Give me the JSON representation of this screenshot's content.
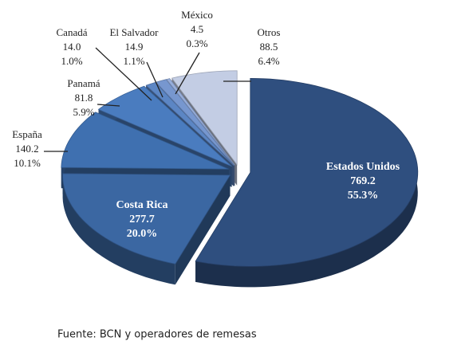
{
  "chart_data": {
    "type": "pie3d",
    "categories": [
      "Estados Unidos",
      "Costa Rica",
      "España",
      "Panamá",
      "Canadá",
      "El Salvador",
      "México",
      "Otros"
    ],
    "values": [
      769.2,
      277.7,
      140.2,
      81.8,
      14.0,
      14.9,
      4.5,
      88.5
    ],
    "value_labels": [
      "769.2",
      "277.7",
      "140.2",
      "81.8",
      "14.0",
      "14.9",
      "4.5",
      "88.5"
    ],
    "percent_labels": [
      "55.3%",
      "20.0%",
      "10.1%",
      "5.9%",
      "1.0%",
      "1.1%",
      "0.3%",
      "6.4%"
    ],
    "colors": [
      "#2f4f7f",
      "#3b67a2",
      "#3f70b0",
      "#4a7cbf",
      "#5c86c4",
      "#7797cf",
      "#97aedb",
      "#c3cde4"
    ],
    "source": "Fuente: BCN y operadores de remesas"
  }
}
